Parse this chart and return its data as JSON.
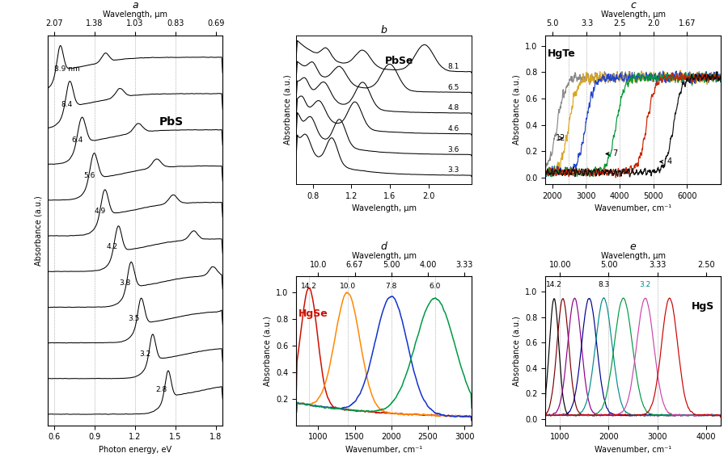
{
  "title_a": "a",
  "title_b": "b",
  "title_c": "c",
  "title_d": "d",
  "title_e": "e",
  "label_PbS": "PbS",
  "label_PbSe": "PbSe",
  "label_HgTe": "HgTe",
  "label_HgSe": "HgSe",
  "label_HgS": "HgS",
  "xlabel_a": "Photon energy, eV",
  "xlabel_b": "Wavelength, μm",
  "xlabel_c": "Wavenumber, cm⁻¹",
  "xlabel_d": "Wavenumber, cm⁻¹",
  "xlabel_e": "Wavenumber, cm⁻¹",
  "ylabel_abs": "Absorbance (a.u.)",
  "top_label_wl": "Wavelength, μm",
  "pbs_diameters": [
    "8.9 nm",
    "8.4",
    "6.4",
    "5.6",
    "4.9",
    "4.2",
    "3.8",
    "3.5",
    "3.2",
    "2.8"
  ],
  "pbse_diameters": [
    "8.1",
    "6.5",
    "4.8",
    "4.6",
    "3.6",
    "3.3"
  ],
  "hgte_colors": [
    "#888888",
    "#DAA520",
    "#2244CC",
    "#009933",
    "#CC2200",
    "#111111"
  ],
  "hgse_colors": [
    "#CC1100",
    "#FF8800",
    "#1133CC",
    "#009944"
  ],
  "hgs_colors": [
    "#000000",
    "#7B0000",
    "#8B008B",
    "#00008B",
    "#008B8B",
    "#009944",
    "#CC44AA",
    "#CC0000"
  ],
  "bg_color": "#FFFFFF"
}
